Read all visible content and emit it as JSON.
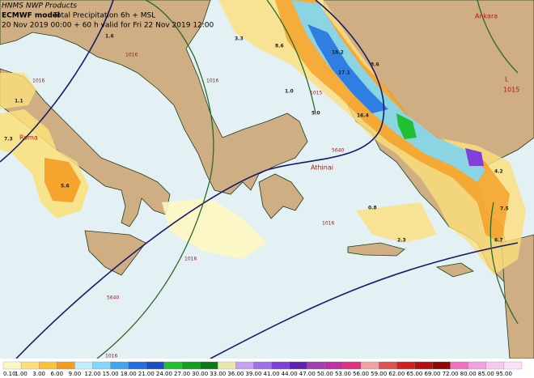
{
  "header": {
    "source": "HNMS NWP Products",
    "model": "ECMWF model",
    "product": "Total Precipitation 6h + MSL",
    "validity": "20 Nov 2019 00:00 + 60 h valid for Fri 22 Nov 2019 12:00"
  },
  "map": {
    "places": [
      "Roma",
      "Athinai",
      "Ankara",
      "L",
      "1015"
    ],
    "contour_labels": [
      "5640",
      "5640",
      "1015",
      "1016",
      "1016",
      "1016",
      "1016",
      "1016",
      "1016"
    ],
    "precip_labels": [
      "3.3",
      "8.6",
      "1.6",
      "1.1",
      "7.3",
      "5.6",
      "18.2",
      "17.1",
      "8.6",
      "1.0",
      "5.0",
      "16.4",
      "4.2",
      "7.5",
      "6.7",
      "0.8",
      "2.3"
    ]
  },
  "legend": {
    "labels": [
      "0.10",
      "1.00",
      "3.00",
      "6.00",
      "9.00",
      "12.00",
      "15.00",
      "18.00",
      "21.00",
      "24.00",
      "27.00",
      "30.00",
      "33.00",
      "36.00",
      "39.00",
      "41.00",
      "44.00",
      "47.00",
      "50.00",
      "53.00",
      "56.00",
      "59.00",
      "62.00",
      "65.00",
      "69.00",
      "72.00",
      "80.00",
      "85.00",
      "95.00"
    ],
    "colors": [
      "#fdf7c2",
      "#fbe07a",
      "#f9c23c",
      "#f49a1c",
      "#bfeefc",
      "#7fd8f7",
      "#3ea7ef",
      "#1f6fe0",
      "#1a4fbf",
      "#20c030",
      "#10a020",
      "#0a7a18",
      "#e8e8a8",
      "#c8a0f0",
      "#a070e8",
      "#8040d8",
      "#6020b0",
      "#a040b0",
      "#c030a0",
      "#e03080",
      "#f0a0a0",
      "#e05050",
      "#d02020",
      "#b01010",
      "#900808",
      "#f070c0",
      "#f0a0e0",
      "#f8c8f0",
      "#fce0f8"
    ]
  }
}
